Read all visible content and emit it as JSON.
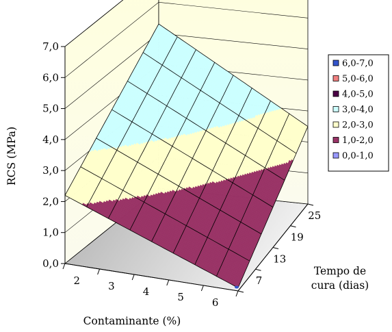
{
  "chart_data": {
    "type": "surface",
    "ylabel": "RCS (MPa)",
    "xlabel": "Contaminante (%)",
    "depth_label": [
      "Tempo de",
      "cura (dias)"
    ],
    "z_ticks": [
      "0,0",
      "1,0",
      "2,0",
      "3,0",
      "4,0",
      "5,0",
      "6,0",
      "7,0"
    ],
    "zlim": [
      0,
      7
    ],
    "x_ticks": [
      "2",
      "3",
      "4",
      "5",
      "6"
    ],
    "depth_ticks": [
      "7",
      "13",
      "19",
      "25"
    ],
    "legend": [
      {
        "label": "6,0-7,0",
        "color": "#3355cc"
      },
      {
        "label": "5,0-6,0",
        "color": "#f08080"
      },
      {
        "label": "4,0-5,0",
        "color": "#4b0045"
      },
      {
        "label": "3,0-4,0",
        "color": "#ccffff"
      },
      {
        "label": "2,0-3,0",
        "color": "#ffffcc"
      },
      {
        "label": "1,0-2,0",
        "color": "#993366"
      },
      {
        "label": "0,0-1,0",
        "color": "#9999ff"
      }
    ],
    "legend_position": "right",
    "grid": true,
    "surface_corners": [
      {
        "contaminante": 2,
        "tempo_cura": 7,
        "rcs": 2.2
      },
      {
        "contaminante": 6,
        "tempo_cura": 7,
        "rcs": 0.1
      },
      {
        "contaminante": 2,
        "tempo_cura": 25,
        "rcs": 5.3
      },
      {
        "contaminante": 6,
        "tempo_cura": 25,
        "rcs": 2.5
      }
    ],
    "surface_grid_divisions": [
      8,
      6
    ]
  },
  "colors": {
    "wall": "#ffffe6",
    "floor": "#c0c0c0",
    "band_low": "#993366",
    "band_mid": "#ffffcc",
    "band_high": "#ccffff"
  }
}
